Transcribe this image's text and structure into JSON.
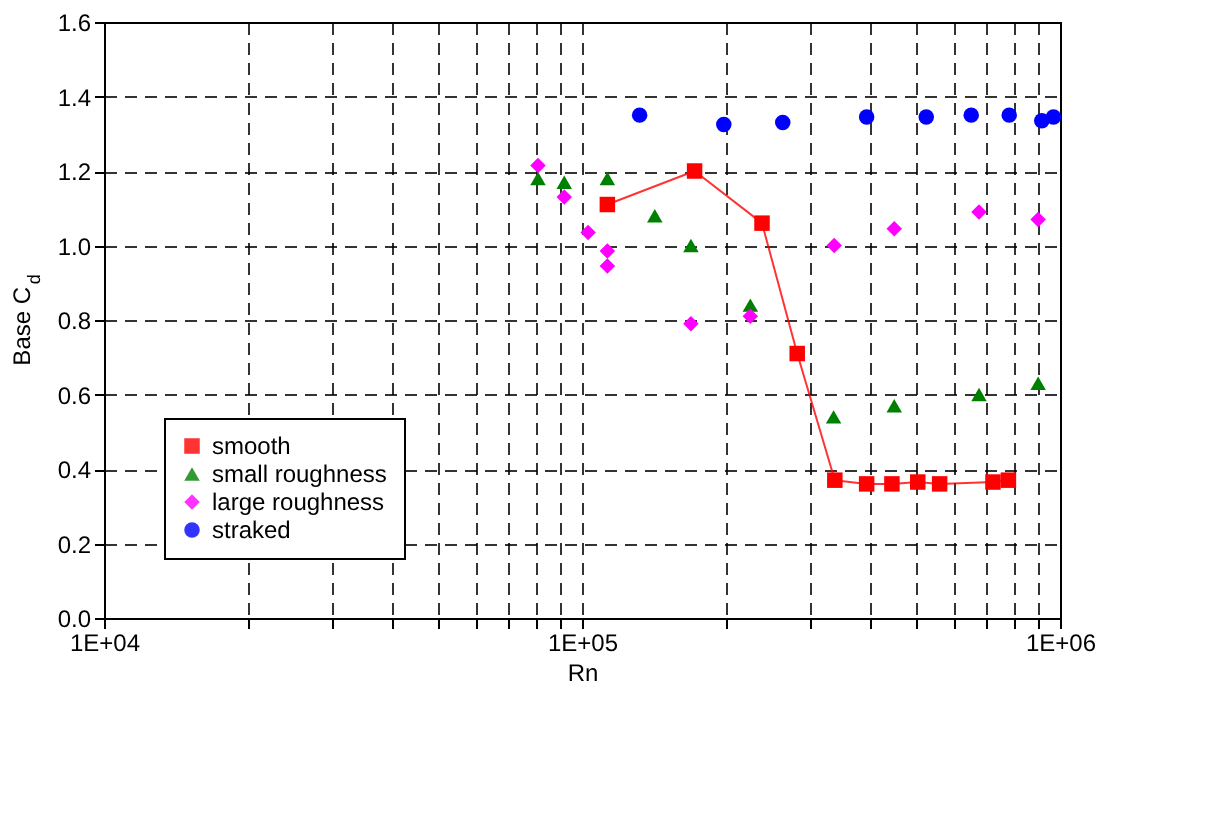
{
  "chart_data": {
    "type": "scatter",
    "xlabel": "Rn",
    "ylabel": "Base C$_{d}$",
    "log": "x",
    "grid": true,
    "legend": "bottom left",
    "xlim": [
      10000,
      1000000
    ],
    "xticks": [
      {
        "value": 10000,
        "label": "1E+04"
      },
      {
        "value": 20000,
        "label": null
      },
      {
        "value": 30000,
        "label": null
      },
      {
        "value": 40000,
        "label": null
      },
      {
        "value": 50000,
        "label": null
      },
      {
        "value": 60000,
        "label": null
      },
      {
        "value": 70000,
        "label": null
      },
      {
        "value": 80000,
        "label": null
      },
      {
        "value": 90000,
        "label": null
      },
      {
        "value": 100000,
        "label": "1E+05"
      },
      {
        "value": 200000,
        "label": null
      },
      {
        "value": 300000,
        "label": null
      },
      {
        "value": 400000,
        "label": null
      },
      {
        "value": 500000,
        "label": null
      },
      {
        "value": 600000,
        "label": null
      },
      {
        "value": 700000,
        "label": null
      },
      {
        "value": 800000,
        "label": null
      },
      {
        "value": 900000,
        "label": null
      },
      {
        "value": 1000000,
        "label": "1E+06"
      }
    ],
    "ylim": [
      0,
      1.6
    ],
    "yticks": [
      {
        "value": 0,
        "label": "0.0"
      },
      {
        "value": 0.2,
        "label": "0.2"
      },
      {
        "value": 0.4,
        "label": "0.4"
      },
      {
        "value": 0.6,
        "label": "0.6"
      },
      {
        "value": 0.8,
        "label": "0.8"
      },
      {
        "value": 1.0,
        "label": "1.0"
      },
      {
        "value": 1.2,
        "label": "1.2"
      },
      {
        "value": 1.4,
        "label": "1.4"
      },
      {
        "value": 1.6,
        "label": "1.6"
      }
    ],
    "series": [
      {
        "name": "smooth",
        "type": "line",
        "marker": "square",
        "color": "#ff0000",
        "x": [
          113000,
          172000,
          238000,
          282000,
          338000,
          394000,
          445000,
          504000,
          560000,
          724000,
          780000
        ],
        "values": [
          1.11,
          1.2,
          1.06,
          0.71,
          0.37,
          0.36,
          0.36,
          0.365,
          0.36,
          0.365,
          0.37
        ]
      },
      {
        "name": "small roughness",
        "type": "scatter",
        "marker": "triangle",
        "color": "#008000",
        "x": [
          80900,
          91800,
          113000,
          142000,
          169000,
          225000,
          336000,
          450000,
          677000,
          900000
        ],
        "values": [
          1.18,
          1.17,
          1.18,
          1.08,
          1.0,
          0.84,
          0.54,
          0.57,
          0.6,
          0.63
        ]
      },
      {
        "name": "large roughness",
        "type": "scatter",
        "marker": "diamond",
        "color": "#ff00ff",
        "x": [
          80900,
          91800,
          103000,
          113000,
          113000,
          169000,
          225000,
          337000,
          450000,
          677000,
          900000
        ],
        "values": [
          1.215,
          1.13,
          1.035,
          0.985,
          0.945,
          0.79,
          0.81,
          1.0,
          1.045,
          1.09,
          1.07
        ]
      },
      {
        "name": "straked",
        "type": "scatter",
        "marker": "circle",
        "color": "#0000ff",
        "x": [
          132000,
          198000,
          263000,
          394000,
          525000,
          652000,
          783000,
          916000,
          969000
        ],
        "values": [
          1.35,
          1.325,
          1.33,
          1.345,
          1.345,
          1.35,
          1.35,
          1.335,
          1.345
        ]
      }
    ]
  }
}
